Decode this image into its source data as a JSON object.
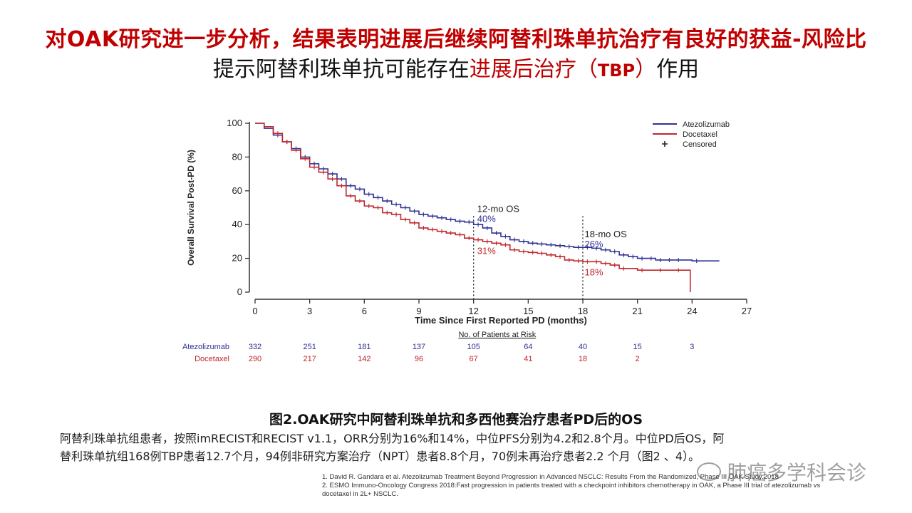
{
  "title": {
    "line1": "对OAK研究进一步分析，结果表明进展后继续阿替利珠单抗治疗有良好的获益-风险比",
    "line2_part1": "提示阿替利珠单抗可能存在",
    "line2_highlight": "进展后治疗",
    "line2_paren_open": "（",
    "line2_abbr": "TBP",
    "line2_paren_close": "）",
    "line2_part2": "作用"
  },
  "chart_data": {
    "type": "line",
    "subtype": "kaplan-meier",
    "xlabel": "Time Since First Reported PD (months)",
    "ylabel": "Overall Survival Post-PD (%)",
    "xlim": [
      0,
      27
    ],
    "ylim": [
      0,
      100
    ],
    "xticks": [
      0,
      3,
      6,
      9,
      12,
      15,
      18,
      21,
      24,
      27
    ],
    "yticks": [
      0,
      20,
      40,
      60,
      80,
      100
    ],
    "legend_position": "top-right",
    "legend": [
      "Atezolizumab",
      "Docetaxel",
      "Censored"
    ],
    "colors": {
      "atezolizumab": "#2e3192",
      "docetaxel": "#c0272d",
      "axis": "#333333"
    },
    "series": [
      {
        "name": "Atezolizumab",
        "color": "#2e3192",
        "x": [
          0,
          0.5,
          1,
          1.5,
          2,
          2.5,
          3,
          3.5,
          4,
          4.5,
          5,
          5.5,
          6,
          6.5,
          7,
          7.5,
          8,
          8.5,
          9,
          9.5,
          10,
          10.5,
          11,
          11.5,
          12,
          12.5,
          13,
          13.5,
          14,
          14.5,
          15,
          15.5,
          16,
          16.5,
          17,
          17.5,
          18,
          18.5,
          19,
          19.5,
          20,
          20.5,
          21,
          21.5,
          22,
          22.5,
          23,
          24,
          25.5
        ],
        "y": [
          100,
          97,
          93,
          89,
          85,
          80,
          76,
          73,
          70,
          67,
          63,
          61,
          58,
          56,
          54,
          52,
          50,
          48,
          46,
          45,
          44,
          43,
          42,
          41.5,
          40,
          38,
          35,
          33,
          31,
          30,
          29,
          28.5,
          28,
          27.5,
          27,
          26.5,
          26.5,
          26,
          25,
          24,
          22,
          21,
          20,
          20,
          19,
          19,
          19,
          18.5,
          18.5
        ]
      },
      {
        "name": "Docetaxel",
        "color": "#c0272d",
        "x": [
          0,
          0.5,
          1,
          1.5,
          2,
          2.5,
          3,
          3.5,
          4,
          4.5,
          5,
          5.5,
          6,
          6.5,
          7,
          7.5,
          8,
          8.5,
          9,
          9.5,
          10,
          10.5,
          11,
          11.5,
          12,
          12.5,
          13,
          13.5,
          14,
          14.5,
          15,
          15.5,
          16,
          16.5,
          17,
          17.5,
          18,
          18.5,
          19,
          19.5,
          20,
          21,
          22,
          23,
          23.9,
          23.9
        ],
        "y": [
          100,
          98,
          94,
          89,
          84,
          79,
          74,
          71,
          67,
          63,
          57,
          54,
          51,
          50,
          47,
          46,
          43,
          41,
          38,
          37,
          36,
          35,
          34,
          32,
          31,
          30,
          29,
          28,
          25,
          24,
          23.5,
          23,
          22,
          21,
          19,
          18.5,
          18,
          18,
          17,
          16,
          14,
          13,
          13,
          13,
          13,
          0
        ]
      }
    ],
    "annotations": [
      {
        "label": "12-mo OS",
        "value": "40%",
        "value2": "31%",
        "x": 12
      },
      {
        "label": "18-mo OS",
        "value": "26%",
        "value2": "18%",
        "x": 18
      }
    ],
    "risk_table": {
      "header": "No. of Patients at Risk",
      "times": [
        0,
        3,
        6,
        9,
        12,
        15,
        18,
        21,
        24
      ],
      "rows": [
        {
          "name": "Atezolizumab",
          "color": "#2e3192",
          "values": [
            "332",
            "251",
            "181",
            "137",
            "105",
            "64",
            "40",
            "15",
            "3"
          ]
        },
        {
          "name": "Docetaxel",
          "color": "#c0272d",
          "values": [
            "290",
            "217",
            "142",
            "96",
            "67",
            "41",
            "18",
            "2",
            ""
          ]
        }
      ]
    }
  },
  "caption": "图2.OAK研究中阿替利珠单抗和多西他赛治疗患者PD后的OS",
  "body_text": {
    "line1": "阿替利珠单抗组患者，按照imRECIST和RECIST  v1.1，ORR分别为16%和14%，中位PFS分别为4.2和2.8个月。中位PD后OS，阿",
    "line2": "替利珠单抗组168例TBP患者12.7个月，94例非研究方案治疗（NPT）患者8.8个月，70例未再治疗患者2.2 个月（图2 、4）。"
  },
  "references": {
    "ref1": "1. David R. Gandara et al. Atezolizumab Treatment Beyond Progression in Advanced NSCLC: Results From the Randomized, Phase III OAK Study.2018",
    "ref2": "2. ESMO Immuno-Oncology Congress 2018:Fast progression in patients treated with a checkpoint inhibitors chemotherapy in OAK, a Phase III trial of atezolizumab vs",
    "ref3": "docetaxel in 2L+ NSCLC."
  },
  "watermark": "肺癌多学科会诊"
}
